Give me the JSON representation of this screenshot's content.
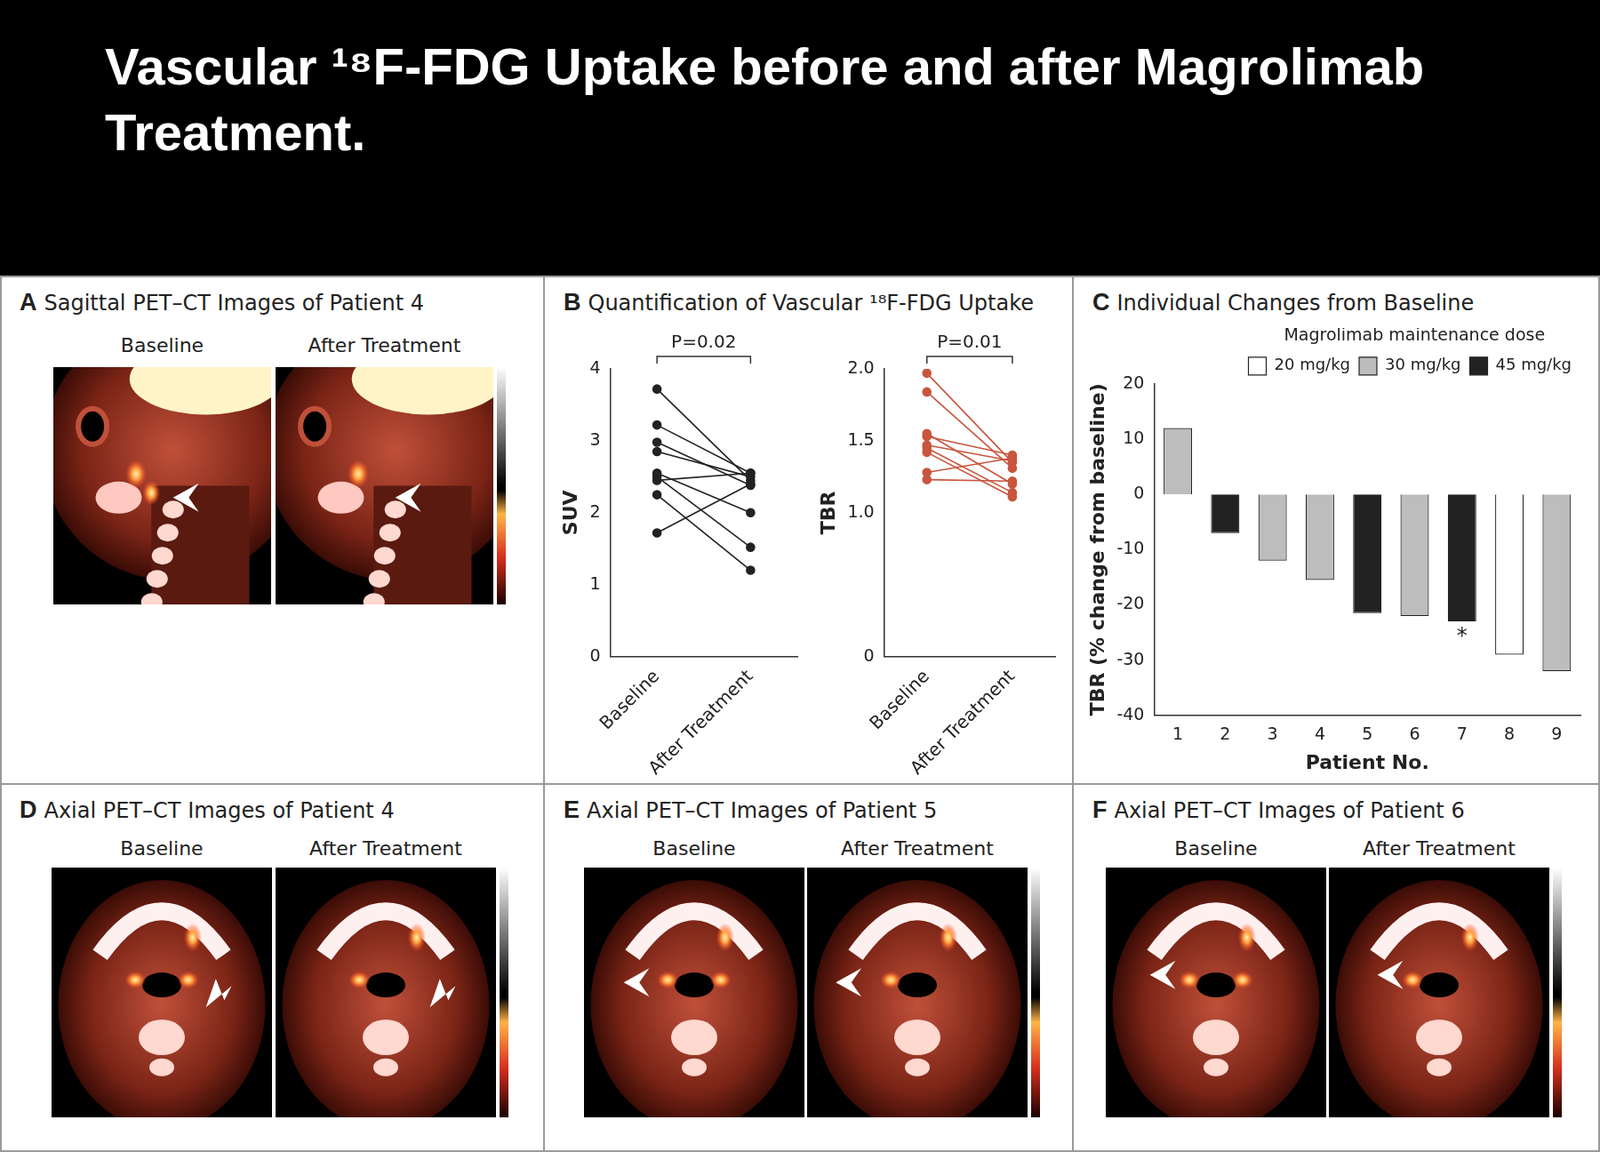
{
  "title": "Vascular ¹⁸F-FDG Uptake before and after Magrolimab Treatment.",
  "image_panels": [
    {
      "letter": "A",
      "title": "Sagittal PET–CT Images of Patient 4",
      "labels": [
        "Baseline",
        "After Treatment"
      ]
    },
    {
      "letter": "D",
      "title": "Axial PET–CT Images of Patient 4",
      "labels": [
        "Baseline",
        "After Treatment"
      ]
    },
    {
      "letter": "E",
      "title": "Axial PET–CT Images of Patient 5",
      "labels": [
        "Baseline",
        "After Treatment"
      ]
    },
    {
      "letter": "F",
      "title": "Axial PET–CT Images of Patient 6",
      "labels": [
        "Baseline",
        "After Treatment"
      ]
    }
  ],
  "chart_panels": [
    {
      "letter": "B",
      "title": "Quantification of Vascular ¹⁸F-FDG Uptake"
    },
    {
      "letter": "C",
      "title": "Individual Changes from Baseline"
    }
  ],
  "chart_data": [
    {
      "type": "line",
      "categories": [
        "Baseline",
        "After Treatment"
      ],
      "y_label": "SUV",
      "color": "#222222",
      "marker": "circle",
      "series": [
        {
          "values": [
            3.72,
            2.45
          ]
        },
        {
          "values": [
            3.22,
            2.55
          ]
        },
        {
          "values": [
            2.98,
            2.38
          ]
        },
        {
          "values": [
            2.85,
            2.5
          ]
        },
        {
          "values": [
            2.55,
            2.0
          ]
        },
        {
          "values": [
            2.5,
            1.52
          ]
        },
        {
          "values": [
            2.45,
            2.55
          ]
        },
        {
          "values": [
            2.25,
            1.2
          ]
        },
        {
          "values": [
            1.72,
            2.4
          ]
        }
      ],
      "ylim": [
        0,
        4
      ],
      "yticks": [
        0,
        1,
        2,
        3,
        4
      ],
      "grid": false,
      "annotations": [
        {
          "text": "P=0.02"
        }
      ]
    },
    {
      "type": "line",
      "categories": [
        "Baseline",
        "After Treatment"
      ],
      "y_label": "TBR",
      "color": "#c8553d",
      "marker": "circle",
      "series": [
        {
          "values": [
            1.97,
            1.35
          ]
        },
        {
          "values": [
            1.84,
            1.31
          ]
        },
        {
          "values": [
            1.55,
            1.2
          ]
        },
        {
          "values": [
            1.53,
            1.4
          ]
        },
        {
          "values": [
            1.47,
            1.36
          ]
        },
        {
          "values": [
            1.45,
            1.14
          ]
        },
        {
          "values": [
            1.42,
            1.11
          ]
        },
        {
          "values": [
            1.28,
            1.38
          ]
        },
        {
          "values": [
            1.23,
            1.22
          ]
        }
      ],
      "ylim": [
        0,
        2
      ],
      "yticks": [
        0,
        {
          "value": 1,
          "label": "1.0"
        },
        {
          "value": 1.5,
          "label": "1.5"
        },
        {
          "value": 2,
          "label": "2.0"
        }
      ],
      "grid": false,
      "annotations": [
        {
          "text": "P=0.01"
        }
      ]
    },
    {
      "type": "bar",
      "categories": [
        "1",
        "2",
        "3",
        "4",
        "5",
        "6",
        "7",
        "8",
        "9"
      ],
      "x_label": "Patient No.",
      "y_label": "TBR (% change from baseline)",
      "legend": "upper right",
      "legend_title": "Magrolimab maintenance dose",
      "stacked": true,
      "series": [
        {
          "name": "20 mg/kg",
          "color": "#ffffff",
          "values": [
            null,
            null,
            null,
            null,
            null,
            null,
            null,
            -29,
            null
          ]
        },
        {
          "name": "30 mg/kg",
          "color": "#bdbdbd",
          "values": [
            12,
            null,
            -12,
            -15.5,
            null,
            -22,
            null,
            null,
            -32
          ]
        },
        {
          "name": "45 mg/kg",
          "color": "#222222",
          "values": [
            null,
            -7,
            null,
            null,
            -21.5,
            null,
            -23,
            null,
            null
          ]
        }
      ],
      "ylim": [
        -40,
        20
      ],
      "yticks": [
        -40,
        -30,
        -20,
        -10,
        0,
        10,
        20
      ],
      "grid": false,
      "annotations": [
        {
          "text": "*",
          "category": "7"
        }
      ]
    }
  ]
}
